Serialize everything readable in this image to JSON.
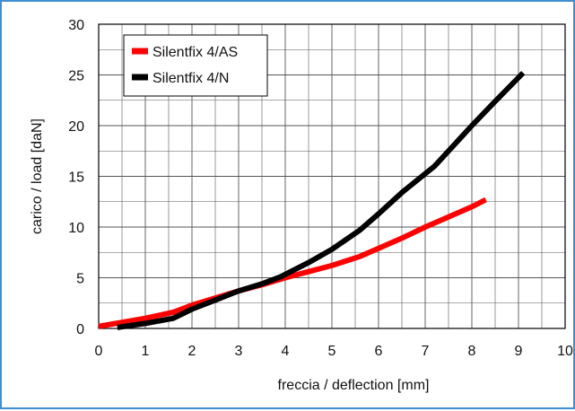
{
  "chart_data": {
    "type": "line",
    "title": "",
    "xlabel": "freccia / deflection [mm]",
    "ylabel": "carico / load [daN]",
    "xlim": [
      0,
      10
    ],
    "ylim": [
      0,
      30
    ],
    "x_ticks": [
      "0",
      "1",
      "2",
      "3",
      "4",
      "5",
      "6",
      "7",
      "8",
      "9",
      "10"
    ],
    "y_ticks": [
      "0",
      "5",
      "10",
      "15",
      "20",
      "25",
      "30"
    ],
    "grid": true,
    "legend_position": "top-left",
    "series": [
      {
        "name": "Silentfix 4/AS",
        "color": "#ff0000",
        "points": [
          [
            0,
            0.2
          ],
          [
            0.5,
            0.6
          ],
          [
            1,
            1.0
          ],
          [
            1.6,
            1.6
          ],
          [
            2,
            2.3
          ],
          [
            2.5,
            3.0
          ],
          [
            3,
            3.7
          ],
          [
            3.5,
            4.3
          ],
          [
            4,
            5.0
          ],
          [
            4.5,
            5.6
          ],
          [
            5,
            6.2
          ],
          [
            5.6,
            7.1
          ],
          [
            6,
            7.9
          ],
          [
            6.5,
            8.9
          ],
          [
            7,
            10.0
          ],
          [
            7.5,
            11.0
          ],
          [
            8,
            12.0
          ],
          [
            8.3,
            12.7
          ]
        ]
      },
      {
        "name": "Silentfix 4/N",
        "color": "#000000",
        "points": [
          [
            0.4,
            0.1
          ],
          [
            1,
            0.5
          ],
          [
            1.6,
            1.0
          ],
          [
            2,
            1.9
          ],
          [
            2.5,
            2.8
          ],
          [
            3,
            3.7
          ],
          [
            3.5,
            4.4
          ],
          [
            3.9,
            5.1
          ],
          [
            4.5,
            6.5
          ],
          [
            5,
            7.8
          ],
          [
            5.6,
            9.7
          ],
          [
            6,
            11.3
          ],
          [
            6.5,
            13.4
          ],
          [
            7.2,
            16.0
          ],
          [
            7.6,
            18.0
          ],
          [
            8,
            20.0
          ],
          [
            8.5,
            22.4
          ],
          [
            9.1,
            25.2
          ]
        ]
      }
    ]
  }
}
